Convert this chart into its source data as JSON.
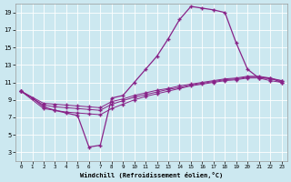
{
  "xlabel": "Windchill (Refroidissement éolien,°C)",
  "background_color": "#cce8f0",
  "line_color": "#882288",
  "grid_color": "#ffffff",
  "xlim": [
    -0.5,
    23.5
  ],
  "ylim": [
    2,
    20
  ],
  "yticks": [
    3,
    5,
    7,
    9,
    11,
    13,
    15,
    17,
    19
  ],
  "xticks": [
    0,
    1,
    2,
    3,
    4,
    5,
    6,
    7,
    8,
    9,
    10,
    11,
    12,
    13,
    14,
    15,
    16,
    17,
    18,
    19,
    20,
    21,
    22,
    23
  ],
  "series": {
    "main": {
      "x": [
        0,
        1,
        2,
        3,
        4,
        5,
        6,
        7,
        8,
        9,
        10,
        11,
        12,
        13,
        14,
        15,
        16,
        17,
        18,
        19,
        20,
        21,
        22,
        23
      ],
      "y": [
        10.0,
        9.2,
        8.2,
        7.8,
        7.5,
        7.2,
        3.6,
        3.8,
        9.2,
        9.5,
        11.0,
        12.5,
        14.0,
        16.0,
        18.2,
        19.7,
        19.5,
        19.3,
        19.0,
        15.5,
        12.5,
        11.5,
        11.5,
        11.0
      ]
    },
    "line2": {
      "x": [
        0,
        2,
        3,
        4,
        5,
        6,
        7,
        8,
        9,
        10,
        11,
        12,
        13,
        14,
        15,
        16,
        17,
        18,
        19,
        20,
        21,
        22,
        23
      ],
      "y": [
        10.0,
        8.0,
        7.8,
        7.6,
        7.5,
        7.4,
        7.3,
        8.0,
        8.5,
        9.0,
        9.4,
        9.7,
        10.0,
        10.3,
        10.6,
        10.8,
        11.0,
        11.2,
        11.3,
        11.5,
        11.5,
        11.2,
        11.0
      ]
    },
    "line3": {
      "x": [
        0,
        2,
        3,
        4,
        5,
        6,
        7,
        8,
        9,
        10,
        11,
        12,
        13,
        14,
        15,
        16,
        17,
        18,
        19,
        20,
        21,
        22,
        23
      ],
      "y": [
        10.0,
        8.4,
        8.2,
        8.1,
        8.0,
        7.9,
        7.8,
        8.5,
        8.9,
        9.3,
        9.6,
        9.9,
        10.2,
        10.4,
        10.7,
        10.9,
        11.1,
        11.3,
        11.4,
        11.6,
        11.6,
        11.4,
        11.2
      ]
    },
    "line4": {
      "x": [
        0,
        2,
        3,
        4,
        5,
        6,
        7,
        8,
        9,
        10,
        11,
        12,
        13,
        14,
        15,
        16,
        17,
        18,
        19,
        20,
        21,
        22,
        23
      ],
      "y": [
        10.0,
        8.6,
        8.5,
        8.4,
        8.3,
        8.2,
        8.1,
        8.8,
        9.1,
        9.5,
        9.8,
        10.1,
        10.3,
        10.6,
        10.8,
        11.0,
        11.2,
        11.4,
        11.5,
        11.7,
        11.7,
        11.5,
        11.2
      ]
    }
  }
}
